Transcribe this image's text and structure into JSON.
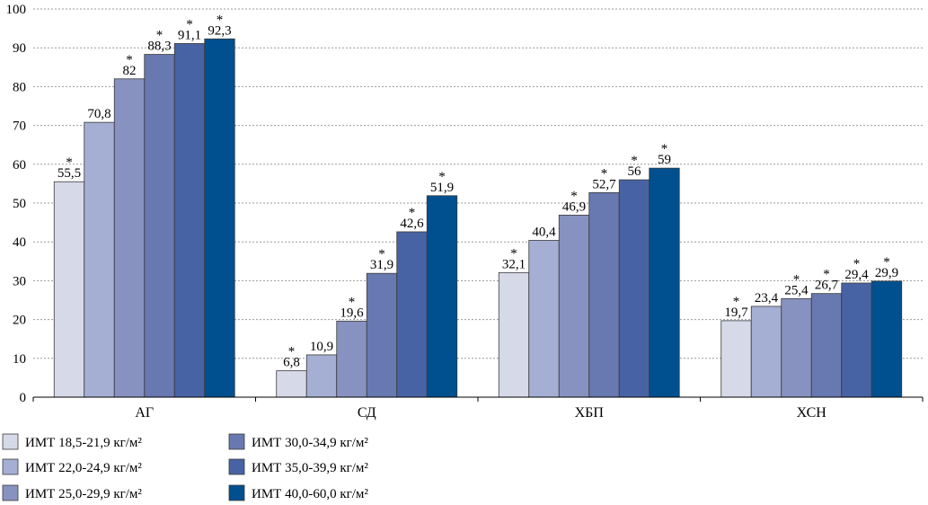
{
  "chart_data": {
    "type": "bar",
    "ylim": [
      0,
      100
    ],
    "y_ticks": [
      "0",
      "10",
      "20",
      "30",
      "40",
      "50",
      "60",
      "70",
      "80",
      "90",
      "100"
    ],
    "grid": "horizontal dotted",
    "legend_position": "bottom-left",
    "categories": [
      "АГ",
      "СД",
      "ХБП",
      "ХСН"
    ],
    "series": [
      {
        "name": "ИМТ 18,5-21,9 кг/м²",
        "color": "#d5d9e8",
        "values": [
          55.5,
          6.8,
          32.1,
          19.7
        ],
        "labels": [
          "55,5",
          "6,8",
          "32,1",
          "19,7"
        ],
        "marked": [
          true,
          true,
          true,
          true
        ]
      },
      {
        "name": "ИМТ 22,0-24,9 кг/м²",
        "color": "#a5afd3",
        "values": [
          70.8,
          10.9,
          40.4,
          23.4
        ],
        "labels": [
          "70,8",
          "10,9",
          "40,4",
          "23,4"
        ],
        "marked": [
          false,
          false,
          false,
          false
        ]
      },
      {
        "name": "ИМТ 25,0-29,9 кг/м²",
        "color": "#8792c1",
        "values": [
          82,
          19.6,
          46.9,
          25.4
        ],
        "labels": [
          "82",
          "19,6",
          "46,9",
          "25,4"
        ],
        "marked": [
          true,
          true,
          true,
          true
        ]
      },
      {
        "name": "ИМТ 30,0-34,9 кг/м²",
        "color": "#6878b1",
        "values": [
          88.3,
          31.9,
          52.7,
          26.7
        ],
        "labels": [
          "88,3",
          "31,9",
          "52,7",
          "26,7"
        ],
        "marked": [
          true,
          true,
          true,
          true
        ]
      },
      {
        "name": "ИМТ 35,0-39,9 кг/м²",
        "color": "#4763a3",
        "values": [
          91.1,
          42.6,
          56,
          29.4
        ],
        "labels": [
          "91,1",
          "42,6",
          "56",
          "29,4"
        ],
        "marked": [
          true,
          true,
          true,
          true
        ]
      },
      {
        "name": "ИМТ 40,0-60,0 кг/м²",
        "color": "#00508f",
        "values": [
          92.3,
          51.9,
          59,
          29.9
        ],
        "labels": [
          "92,3",
          "51,9",
          "59",
          "29,9"
        ],
        "marked": [
          true,
          true,
          true,
          true
        ]
      }
    ],
    "significance_marker": "*"
  }
}
